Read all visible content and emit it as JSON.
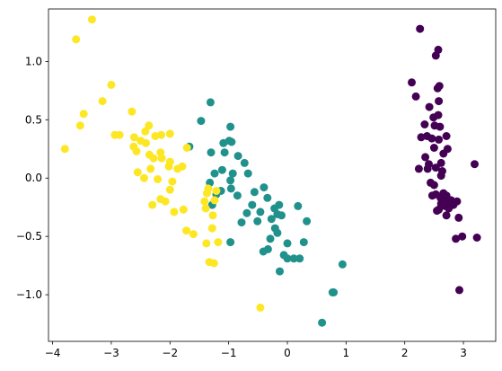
{
  "chart_data": {
    "type": "scatter",
    "title": "",
    "xlabel": "",
    "ylabel": "",
    "xlim": [
      -4.07,
      3.55
    ],
    "ylim": [
      -1.4,
      1.45
    ],
    "xticks": [
      -4,
      -3,
      -2,
      -1,
      0,
      1,
      2,
      3
    ],
    "yticks": [
      -1.0,
      -0.5,
      0.0,
      0.5,
      1.0
    ],
    "xtick_labels": [
      "−4",
      "−3",
      "−2",
      "−1",
      "0",
      "1",
      "2",
      "3"
    ],
    "ytick_labels": [
      "−1.0",
      "−0.5",
      "0.0",
      "0.5",
      "1.0"
    ],
    "grid": false,
    "series": [
      {
        "color": "#440154",
        "points": [
          [
            2.26,
            1.28
          ],
          [
            2.57,
            1.1
          ],
          [
            2.53,
            1.05
          ],
          [
            2.12,
            0.82
          ],
          [
            2.59,
            0.79
          ],
          [
            2.56,
            0.77
          ],
          [
            2.19,
            0.7
          ],
          [
            2.58,
            0.66
          ],
          [
            2.42,
            0.61
          ],
          [
            2.49,
            0.52
          ],
          [
            2.57,
            0.54
          ],
          [
            2.51,
            0.45
          ],
          [
            2.34,
            0.46
          ],
          [
            2.6,
            0.44
          ],
          [
            2.38,
            0.36
          ],
          [
            2.28,
            0.35
          ],
          [
            2.46,
            0.34
          ],
          [
            2.58,
            0.33
          ],
          [
            2.71,
            0.36
          ],
          [
            2.73,
            0.25
          ],
          [
            2.66,
            0.21
          ],
          [
            2.5,
            0.26
          ],
          [
            2.62,
            0.13
          ],
          [
            2.35,
            0.18
          ],
          [
            2.53,
            0.09
          ],
          [
            2.64,
            0.06
          ],
          [
            2.24,
            0.08
          ],
          [
            2.39,
            0.08
          ],
          [
            3.19,
            0.12
          ],
          [
            2.44,
            -0.04
          ],
          [
            2.5,
            -0.06
          ],
          [
            2.41,
            0.12
          ],
          [
            2.62,
            0.02
          ],
          [
            2.53,
            -0.14
          ],
          [
            2.61,
            -0.17
          ],
          [
            2.66,
            -0.13
          ],
          [
            2.47,
            -0.15
          ],
          [
            2.71,
            -0.15
          ],
          [
            2.67,
            -0.19
          ],
          [
            2.62,
            -0.22
          ],
          [
            2.79,
            -0.19
          ],
          [
            2.83,
            -0.23
          ],
          [
            2.75,
            -0.26
          ],
          [
            2.58,
            -0.27
          ],
          [
            2.71,
            -0.32
          ],
          [
            2.69,
            -0.24
          ],
          [
            2.89,
            -0.2
          ],
          [
            2.98,
            -0.5
          ],
          [
            2.87,
            -0.52
          ],
          [
            3.23,
            -0.51
          ],
          [
            2.93,
            -0.96
          ],
          [
            2.78,
            -0.22
          ],
          [
            2.92,
            -0.34
          ],
          [
            2.55,
            -0.28
          ]
        ]
      },
      {
        "color": "#21918c",
        "points": [
          [
            -1.31,
            0.65
          ],
          [
            -1.47,
            0.49
          ],
          [
            -0.97,
            0.44
          ],
          [
            -1.09,
            0.3
          ],
          [
            -0.99,
            0.32
          ],
          [
            -0.95,
            0.31
          ],
          [
            -1.3,
            0.22
          ],
          [
            -1.67,
            0.27
          ],
          [
            -1.07,
            0.22
          ],
          [
            -0.84,
            0.19
          ],
          [
            -0.73,
            0.13
          ],
          [
            -1.11,
            0.07
          ],
          [
            -1.24,
            0.04
          ],
          [
            -0.93,
            0.04
          ],
          [
            -0.67,
            0.04
          ],
          [
            -0.97,
            -0.02
          ],
          [
            -1.32,
            -0.04
          ],
          [
            -1.13,
            -0.11
          ],
          [
            -0.96,
            -0.09
          ],
          [
            -0.4,
            -0.08
          ],
          [
            -1.21,
            -0.14
          ],
          [
            -0.56,
            -0.12
          ],
          [
            -0.85,
            -0.15
          ],
          [
            -0.34,
            -0.17
          ],
          [
            -0.22,
            -0.26
          ],
          [
            -1.28,
            -0.23
          ],
          [
            -0.14,
            -0.23
          ],
          [
            -0.6,
            -0.23
          ],
          [
            -0.17,
            -0.31
          ],
          [
            -0.1,
            -0.32
          ],
          [
            -0.69,
            -0.3
          ],
          [
            0.18,
            -0.24
          ],
          [
            -0.27,
            -0.35
          ],
          [
            -0.51,
            -0.37
          ],
          [
            0.33,
            -0.37
          ],
          [
            -0.21,
            -0.43
          ],
          [
            -0.17,
            -0.47
          ],
          [
            -0.78,
            -0.38
          ],
          [
            -0.29,
            -0.52
          ],
          [
            0.0,
            -0.56
          ],
          [
            -0.97,
            -0.55
          ],
          [
            -0.41,
            -0.63
          ],
          [
            -0.33,
            -0.61
          ],
          [
            -0.06,
            -0.66
          ],
          [
            0.0,
            -0.69
          ],
          [
            0.11,
            -0.69
          ],
          [
            0.21,
            -0.69
          ],
          [
            -0.13,
            -0.8
          ],
          [
            0.94,
            -0.74
          ],
          [
            0.79,
            -0.98
          ],
          [
            0.77,
            -0.98
          ],
          [
            0.59,
            -1.24
          ],
          [
            0.28,
            -0.55
          ],
          [
            -0.46,
            -0.29
          ]
        ]
      },
      {
        "color": "#fde725",
        "points": [
          [
            -3.33,
            1.36
          ],
          [
            -3.6,
            1.19
          ],
          [
            -3.0,
            0.8
          ],
          [
            -3.15,
            0.66
          ],
          [
            -3.47,
            0.55
          ],
          [
            -2.65,
            0.57
          ],
          [
            -3.53,
            0.45
          ],
          [
            -2.36,
            0.45
          ],
          [
            -2.42,
            0.4
          ],
          [
            -2.94,
            0.37
          ],
          [
            -2.86,
            0.37
          ],
          [
            -2.61,
            0.35
          ],
          [
            -2.5,
            0.32
          ],
          [
            -2.15,
            0.37
          ],
          [
            -2.0,
            0.38
          ],
          [
            -2.25,
            0.36
          ],
          [
            -2.41,
            0.3
          ],
          [
            -2.62,
            0.27
          ],
          [
            -2.57,
            0.23
          ],
          [
            -3.79,
            0.25
          ],
          [
            -2.35,
            0.2
          ],
          [
            -2.16,
            0.22
          ],
          [
            -2.14,
            0.17
          ],
          [
            -2.28,
            0.17
          ],
          [
            -2.0,
            0.14
          ],
          [
            -1.87,
            0.08
          ],
          [
            -1.79,
            0.1
          ],
          [
            -2.02,
            0.1
          ],
          [
            -2.33,
            0.08
          ],
          [
            -2.55,
            0.05
          ],
          [
            -1.71,
            0.26
          ],
          [
            -1.96,
            -0.03
          ],
          [
            -2.21,
            -0.01
          ],
          [
            -2.44,
            0.0
          ],
          [
            -2.0,
            -0.1
          ],
          [
            -1.35,
            -0.09
          ],
          [
            -1.37,
            -0.13
          ],
          [
            -1.21,
            -0.11
          ],
          [
            -1.41,
            -0.2
          ],
          [
            -1.24,
            -0.19
          ],
          [
            -2.16,
            -0.18
          ],
          [
            -2.08,
            -0.2
          ],
          [
            -1.39,
            -0.26
          ],
          [
            -2.3,
            -0.23
          ],
          [
            -1.77,
            -0.27
          ],
          [
            -1.93,
            -0.29
          ],
          [
            -1.27,
            -0.32
          ],
          [
            -1.28,
            -0.43
          ],
          [
            -1.72,
            -0.45
          ],
          [
            -1.6,
            -0.48
          ],
          [
            -1.38,
            -0.56
          ],
          [
            -1.18,
            -0.55
          ],
          [
            -1.33,
            -0.72
          ],
          [
            -1.25,
            -0.73
          ],
          [
            -0.46,
            -1.11
          ]
        ]
      }
    ]
  }
}
